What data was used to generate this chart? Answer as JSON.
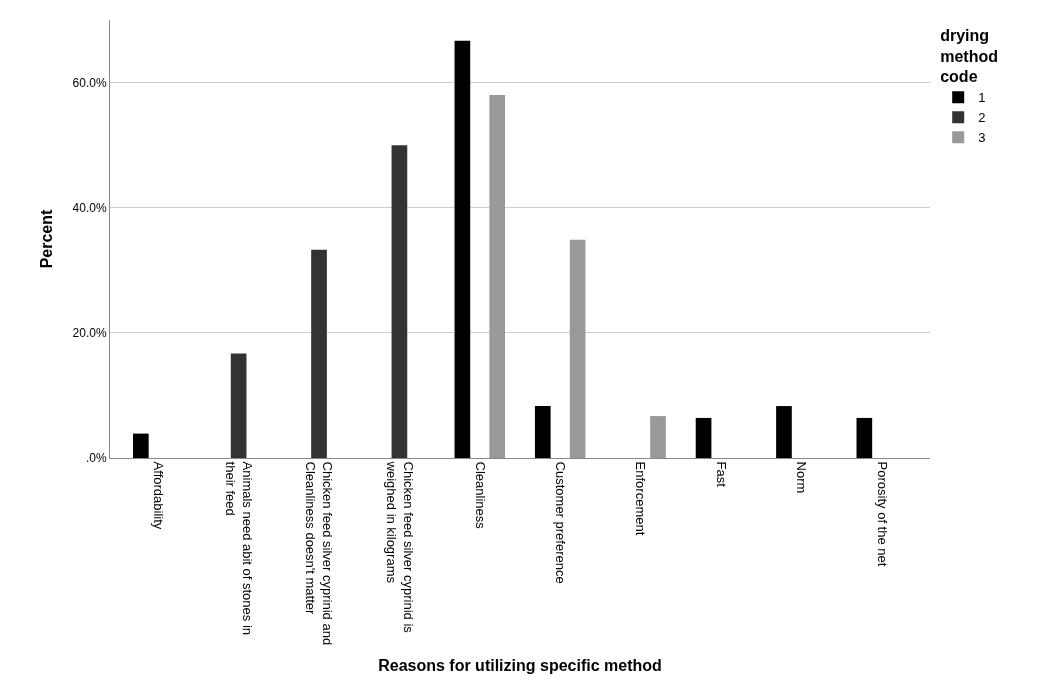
{
  "chart_data": {
    "type": "bar",
    "xlabel": "Reasons for utilizing specific method",
    "ylabel": "Percent",
    "legend_title": "drying method code",
    "categories": [
      "Affordability",
      "Animals need abit of stones in their feed",
      "Chicken feed silver cyprinid and Cleanliness doesn't matter",
      "Chicken feed silver cyprinid is weighed in kilograms",
      "Cleanliness",
      "Customer preference",
      "Enforcement",
      "Fast",
      "Norm",
      "Porosity of the net"
    ],
    "series": [
      {
        "name": "1",
        "color": "#000000",
        "values": [
          3.9,
          null,
          null,
          null,
          66.7,
          8.3,
          null,
          6.4,
          8.3,
          6.4
        ]
      },
      {
        "name": "2",
        "color": "#333333",
        "values": [
          null,
          16.7,
          33.3,
          50.0,
          null,
          null,
          null,
          null,
          null,
          null
        ]
      },
      {
        "name": "3",
        "color": "#999999",
        "values": [
          null,
          null,
          null,
          null,
          58.0,
          34.9,
          6.7,
          null,
          null,
          null
        ]
      }
    ],
    "ylim": [
      0,
      70
    ],
    "yticks": [
      {
        "value": 0,
        "label": ".0%"
      },
      {
        "value": 20,
        "label": "20.0%"
      },
      {
        "value": 40,
        "label": "40.0%"
      },
      {
        "value": 60,
        "label": "60.0%"
      }
    ],
    "grid": "y",
    "legend": "top right"
  }
}
